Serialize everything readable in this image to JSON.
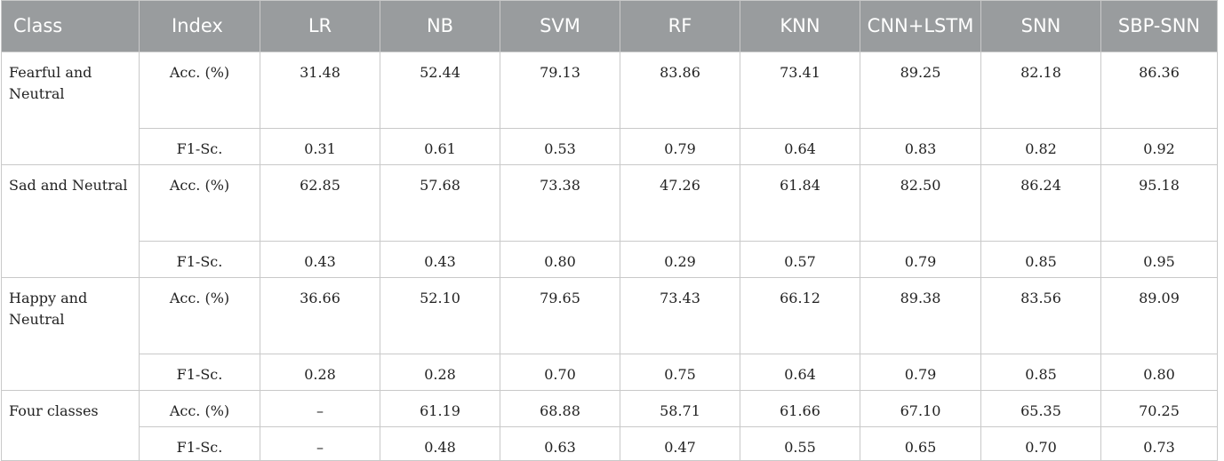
{
  "table": {
    "headers": [
      "Class",
      "Index",
      "LR",
      "NB",
      "SVM",
      "RF",
      "KNN",
      "CNN+LSTM",
      "SNN",
      "SBP-SNN"
    ],
    "groups": [
      {
        "class": "Fearful and Neutral",
        "acc": {
          "index": "Acc. (%)",
          "values": [
            "31.48",
            "52.44",
            "79.13",
            "83.86",
            "73.41",
            "89.25",
            "82.18",
            "86.36"
          ]
        },
        "f1": {
          "index": "F1-Sc.",
          "values": [
            "0.31",
            "0.61",
            "0.53",
            "0.79",
            "0.64",
            "0.83",
            "0.82",
            "0.92"
          ]
        }
      },
      {
        "class": "Sad and Neutral",
        "acc": {
          "index": "Acc. (%)",
          "values": [
            "62.85",
            "57.68",
            "73.38",
            "47.26",
            "61.84",
            "82.50",
            "86.24",
            "95.18"
          ]
        },
        "f1": {
          "index": "F1-Sc.",
          "values": [
            "0.43",
            "0.43",
            "0.80",
            "0.29",
            "0.57",
            "0.79",
            "0.85",
            "0.95"
          ]
        }
      },
      {
        "class": "Happy and Neutral",
        "acc": {
          "index": "Acc. (%)",
          "values": [
            "36.66",
            "52.10",
            "79.65",
            "73.43",
            "66.12",
            "89.38",
            "83.56",
            "89.09"
          ]
        },
        "f1": {
          "index": "F1-Sc.",
          "values": [
            "0.28",
            "0.28",
            "0.70",
            "0.75",
            "0.64",
            "0.79",
            "0.85",
            "0.80"
          ]
        }
      },
      {
        "class": "Four classes",
        "acc": {
          "index": "Acc. (%)",
          "values": [
            "–",
            "61.19",
            "68.88",
            "58.71",
            "61.66",
            "67.10",
            "65.35",
            "70.25"
          ]
        },
        "f1": {
          "index": "F1-Sc.",
          "values": [
            "–",
            "0.48",
            "0.63",
            "0.47",
            "0.55",
            "0.65",
            "0.70",
            "0.73"
          ]
        }
      }
    ]
  }
}
